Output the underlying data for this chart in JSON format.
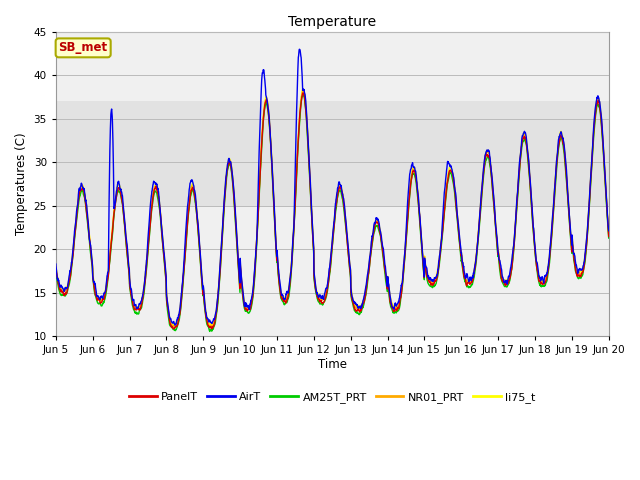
{
  "title": "Temperature",
  "ylabel": "Temperatures (C)",
  "xlabel": "Time",
  "ylim": [
    10,
    45
  ],
  "yticks": [
    10,
    15,
    20,
    25,
    30,
    35,
    40,
    45
  ],
  "xtick_labels": [
    "Jun 5",
    "Jun 6",
    "Jun 7",
    "Jun 8",
    "Jun 9",
    "Jun 10",
    "Jun 11",
    "Jun 12",
    "Jun 13",
    "Jun 14",
    "Jun 15",
    "Jun 16",
    "Jun 17",
    "Jun 18",
    "Jun 19",
    "Jun 20"
  ],
  "series": {
    "PanelT": {
      "color": "#dd0000",
      "lw": 1.0
    },
    "AirT": {
      "color": "#0000ee",
      "lw": 1.0
    },
    "AM25T_PRT": {
      "color": "#00cc00",
      "lw": 1.0
    },
    "NR01_PRT": {
      "color": "#ffaa00",
      "lw": 1.0
    },
    "li75_t": {
      "color": "#ffff00",
      "lw": 1.0
    }
  },
  "annotation_text": "SB_met",
  "annotation_color": "#bb0000",
  "annotation_bg": "#ffffcc",
  "annotation_border": "#aaaa00",
  "shaded_band": [
    25,
    37
  ],
  "shaded_color": "#dddddd",
  "plot_bg": "#f0f0f0",
  "grid_color": "#bbbbbb"
}
